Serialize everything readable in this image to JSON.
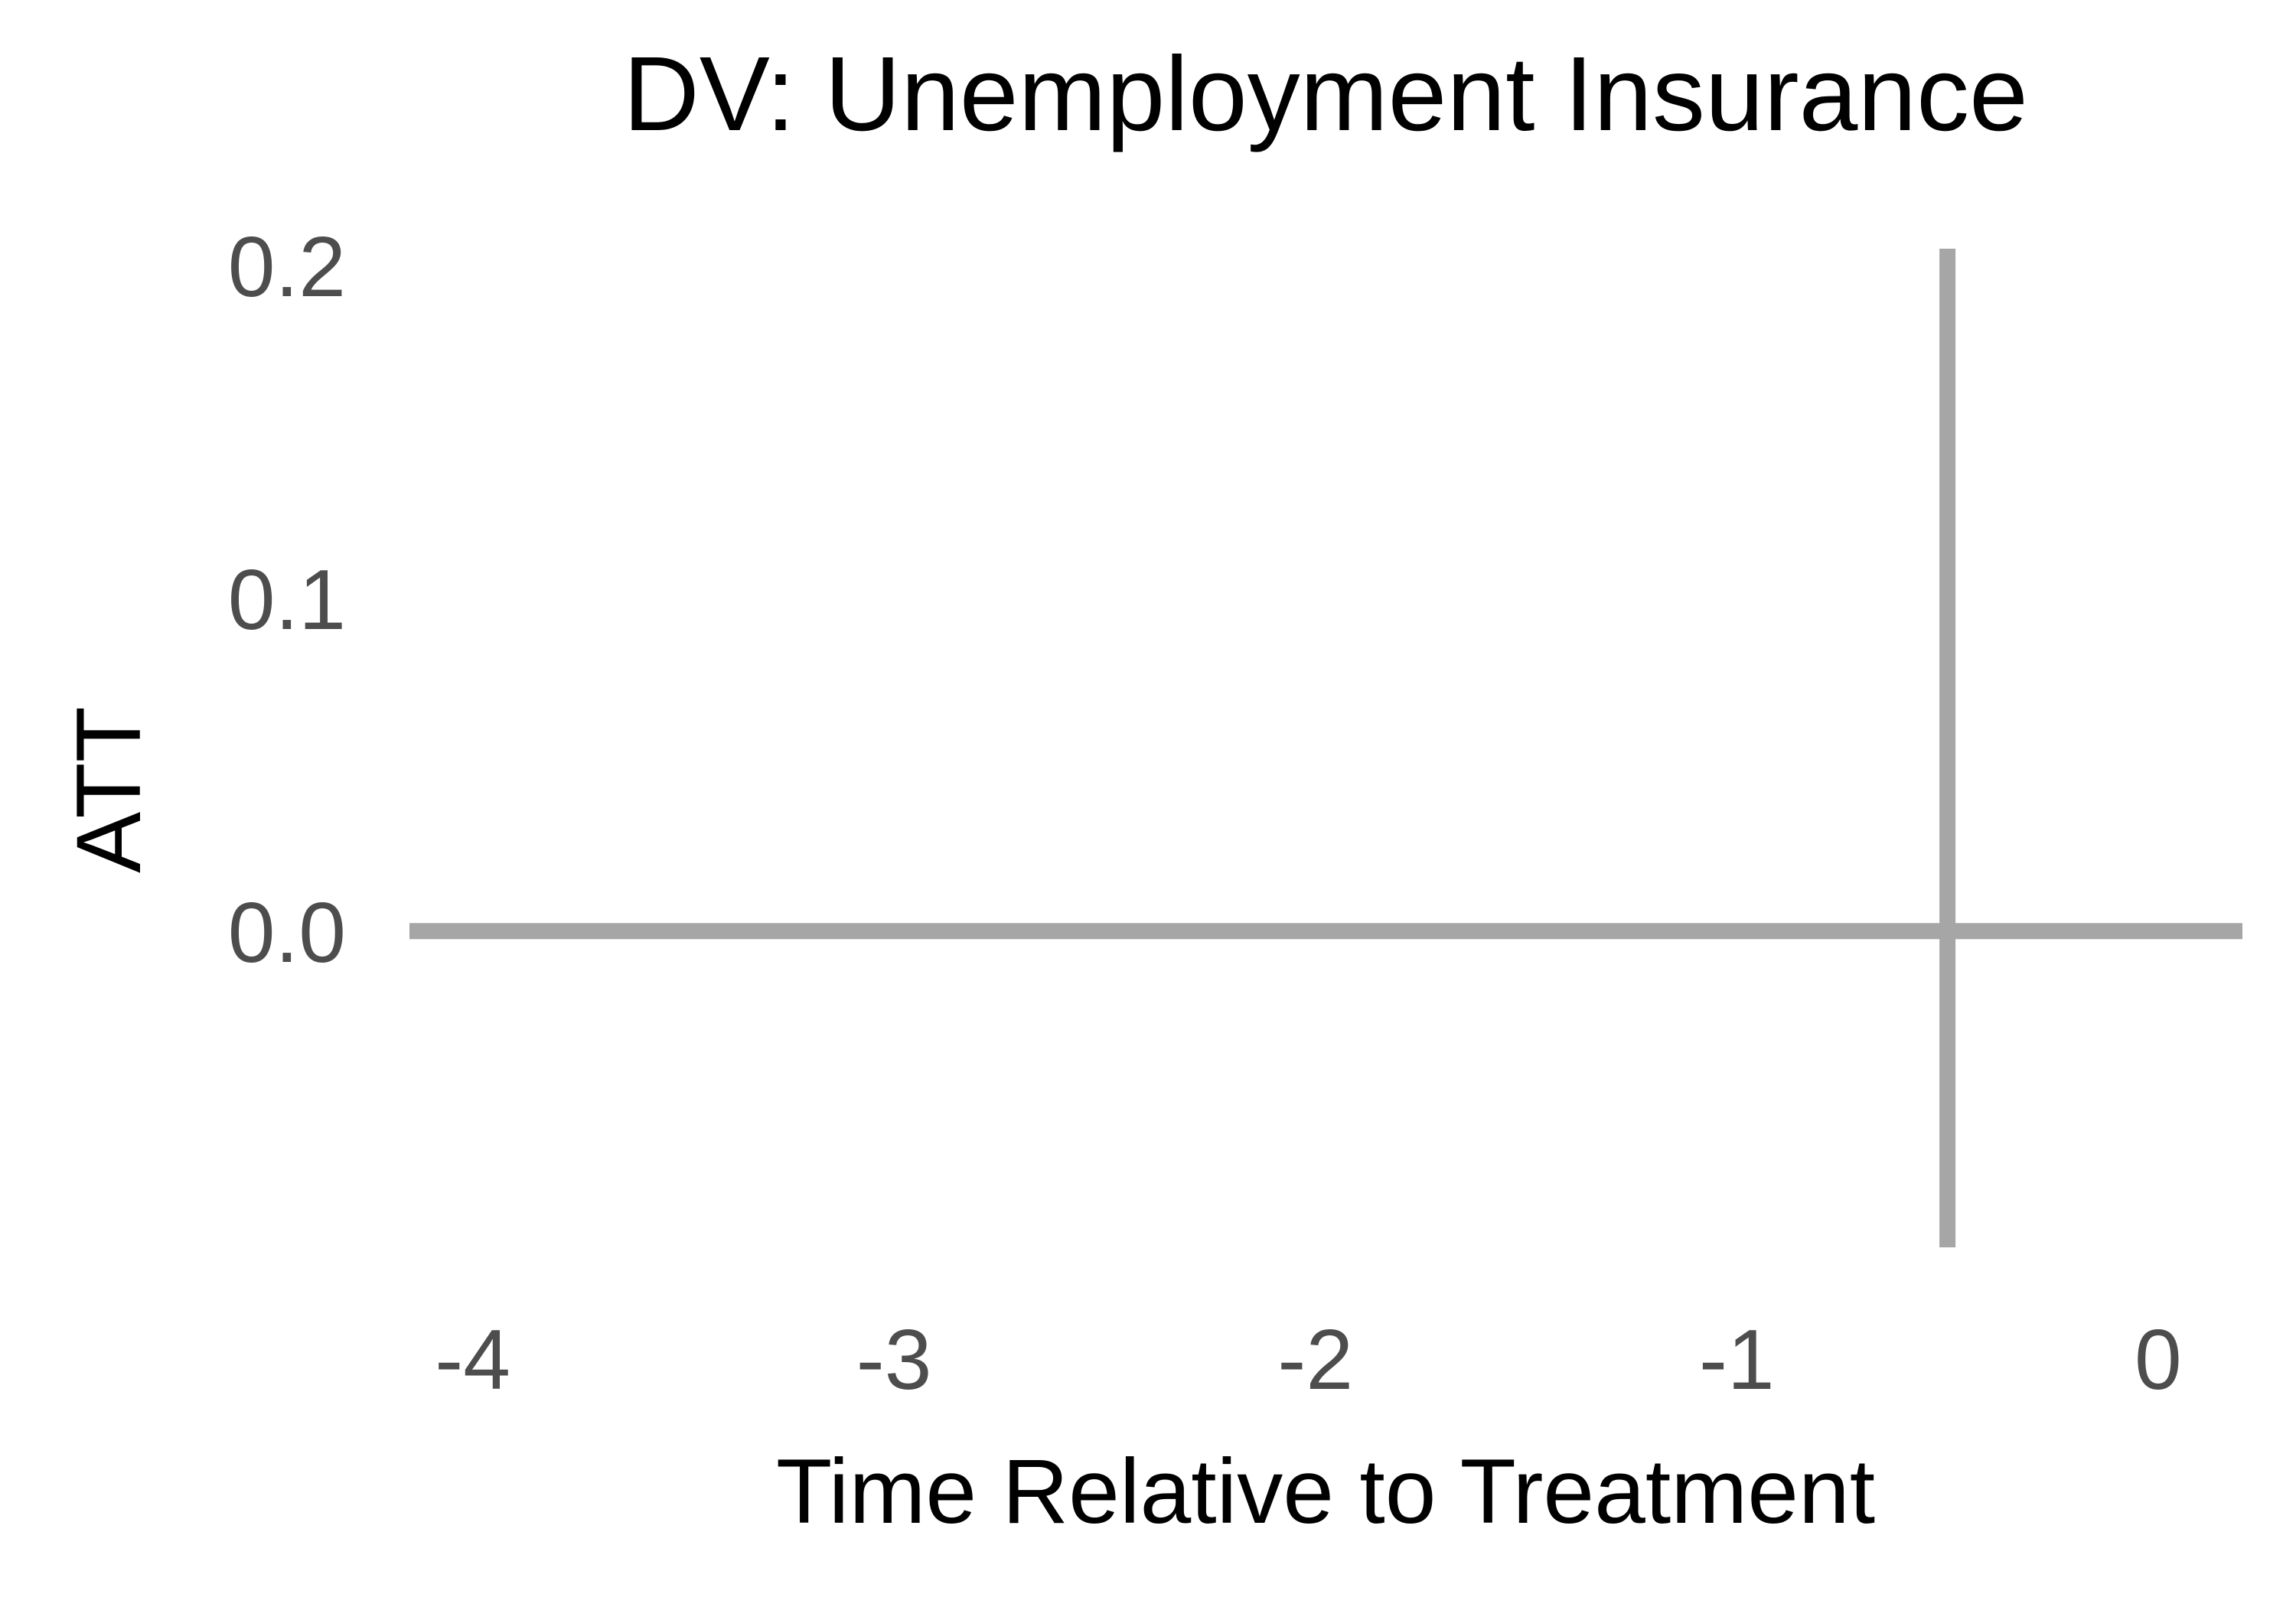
{
  "chart_data": {
    "type": "line",
    "title": "DV: Unemployment Insurance",
    "xlabel": "Time Relative to Treatment",
    "ylabel": "ATT",
    "x_ticks": [
      {
        "value": -4,
        "label": "-4"
      },
      {
        "value": -3,
        "label": "-3"
      },
      {
        "value": -2,
        "label": "-2"
      },
      {
        "value": -1,
        "label": "-1"
      },
      {
        "value": 0,
        "label": "0"
      }
    ],
    "y_ticks": [
      {
        "value": 0.0,
        "label": "0.0"
      },
      {
        "value": 0.1,
        "label": "0.1"
      },
      {
        "value": 0.2,
        "label": "0.2"
      }
    ],
    "xlim": [
      -4.15,
      0.2
    ],
    "ylim": [
      -0.095,
      0.205
    ],
    "grid": false,
    "series": [],
    "reference_lines": [
      {
        "orientation": "horizontal",
        "value": 0.0,
        "color": "#a6a6a6"
      },
      {
        "orientation": "vertical",
        "value": -0.5,
        "color": "#a6a6a6"
      }
    ],
    "colors": {
      "reference_line": "#a6a6a6",
      "tick_label": "#4d4d4d",
      "text": "#000000",
      "background": "#ffffff"
    }
  }
}
